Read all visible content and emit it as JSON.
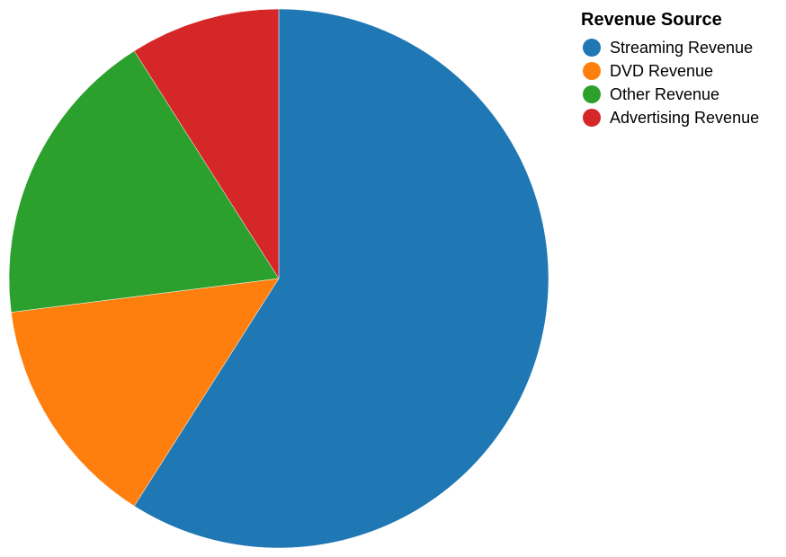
{
  "chart_data": {
    "type": "pie",
    "categories": [
      "Streaming Revenue",
      "DVD Revenue",
      "Other Revenue",
      "Advertising Revenue"
    ],
    "values": [
      59,
      14,
      18,
      9
    ],
    "colors": [
      "#1f77b4",
      "#ff7f0e",
      "#2ca02c",
      "#d62728"
    ],
    "start_angle_deg": 0,
    "direction": "clockwise",
    "legend": {
      "title": "Revenue Source",
      "placement": "top-right"
    }
  }
}
